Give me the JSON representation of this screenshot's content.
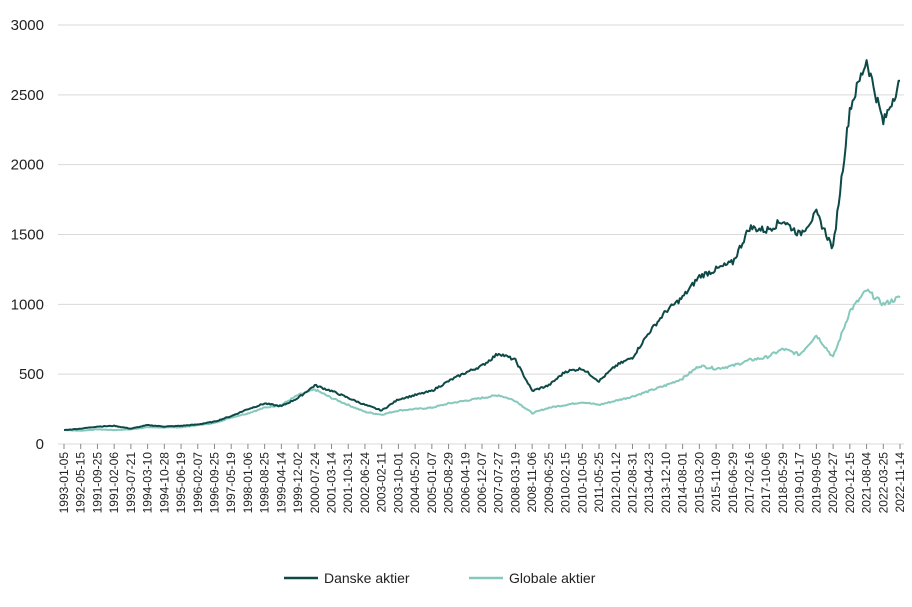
{
  "chart_data": {
    "type": "line",
    "title": "",
    "xlabel": "",
    "ylabel": "",
    "ylim": [
      0,
      3000
    ],
    "y_ticks": [
      0,
      500,
      1000,
      1500,
      2000,
      2500,
      3000
    ],
    "grid": "horizontal",
    "legend_position": "bottom-center",
    "x_tick_labels": [
      "1993-01-05",
      "1992-05-15",
      "1991-09-25",
      "1991-02-06",
      "1993-07-21",
      "1994-03-10",
      "1994-10-28",
      "1995-06-19",
      "1996-02-07",
      "1996-09-25",
      "1997-05-19",
      "1998-01-06",
      "1998-08-25",
      "1999-04-14",
      "1999-12-02",
      "2000-07-24",
      "2001-03-14",
      "2001-10-31",
      "2002-06-24",
      "2003-02-11",
      "2003-10-01",
      "2004-05-20",
      "2005-01-07",
      "2005-08-29",
      "2006-04-19",
      "2006-12-07",
      "2007-07-27",
      "2008-03-19",
      "2008-11-06",
      "2009-06-25",
      "2010-02-15",
      "2010-10-05",
      "2011-05-25",
      "2012-01-12",
      "2012-08-31",
      "2013-04-23",
      "2013-12-10",
      "2014-08-01",
      "2015-03-20",
      "2015-11-09",
      "2016-06-29",
      "2017-02-16",
      "2017-10-06",
      "2018-05-29",
      "2019-01-17",
      "2019-09-05",
      "2020-04-27",
      "2020-12-15",
      "2021-08-04",
      "2022-03-25",
      "2022-11-14"
    ],
    "series": [
      {
        "name": "Danske aktier",
        "color": "#0d4a47",
        "values": [
          100,
          110,
          125,
          130,
          110,
          135,
          125,
          130,
          140,
          160,
          200,
          250,
          290,
          270,
          330,
          420,
          380,
          330,
          280,
          240,
          320,
          350,
          380,
          450,
          510,
          560,
          650,
          600,
          380,
          420,
          520,
          540,
          450,
          560,
          620,
          800,
          950,
          1050,
          1200,
          1250,
          1300,
          1550,
          1530,
          1600,
          1500,
          1650,
          1400,
          2400,
          2750,
          2300,
          2600
        ]
      },
      {
        "name": "Globale aktier",
        "color": "#86c9bc",
        "values": [
          100,
          95,
          105,
          100,
          105,
          120,
          118,
          120,
          135,
          150,
          190,
          220,
          260,
          280,
          350,
          390,
          330,
          280,
          230,
          210,
          240,
          250,
          260,
          290,
          310,
          330,
          350,
          310,
          220,
          260,
          280,
          300,
          280,
          310,
          340,
          380,
          420,
          470,
          560,
          540,
          560,
          600,
          620,
          680,
          640,
          780,
          620,
          950,
          1100,
          1000,
          1050
        ]
      }
    ]
  }
}
